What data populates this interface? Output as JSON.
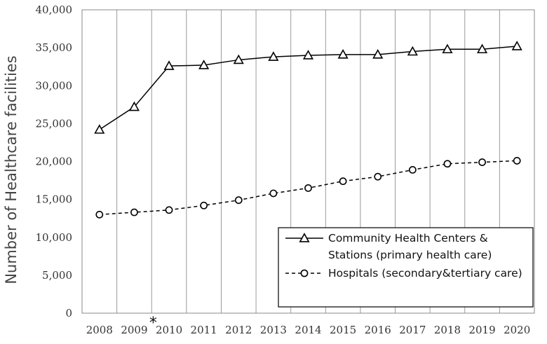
{
  "chart_data": {
    "type": "line",
    "ylabel": "Number of  Healthcare facilities",
    "xlabel": "",
    "title": "",
    "categories": [
      "2008",
      "2009",
      "2010",
      "2011",
      "2012",
      "2013",
      "2014",
      "2015",
      "2016",
      "2017",
      "2018",
      "2019",
      "2020"
    ],
    "category_annotation": {
      "category": "2009",
      "mark": "*"
    },
    "ylim": [
      0,
      40000
    ],
    "yticks": [
      {
        "value": 0,
        "label": "0"
      },
      {
        "value": 5000,
        "label": "5,000"
      },
      {
        "value": 10000,
        "label": "10,000"
      },
      {
        "value": 15000,
        "label": "15,000"
      },
      {
        "value": 20000,
        "label": "20,000"
      },
      {
        "value": 25000,
        "label": "25,000"
      },
      {
        "value": 30000,
        "label": "30,000"
      },
      {
        "value": 35000,
        "label": "35,000"
      },
      {
        "value": 40000,
        "label": "40,000"
      }
    ],
    "grid": "vertical",
    "legend": {
      "placement": "bottom-right",
      "entries": [
        {
          "lines": [
            "Community Health Centers &",
            "Stations (primary health care)"
          ],
          "series": 0
        },
        {
          "lines": [
            "Hospitals (secondary&tertiary care)"
          ],
          "series": 1
        }
      ]
    },
    "series": [
      {
        "name": "Community Health Centers & Stations (primary health care)",
        "marker": "triangle",
        "line_style": "solid",
        "color": "#000000",
        "values": [
          24200,
          27200,
          32600,
          32700,
          33400,
          33800,
          34000,
          34100,
          34100,
          34500,
          34800,
          34800,
          35200
        ]
      },
      {
        "name": "Hospitals (secondary&tertiary care)",
        "marker": "circle",
        "line_style": "dashed",
        "color": "#000000",
        "values": [
          13000,
          13300,
          13600,
          14200,
          14900,
          15800,
          16500,
          17400,
          18000,
          18900,
          19700,
          19900,
          20100
        ]
      }
    ]
  }
}
